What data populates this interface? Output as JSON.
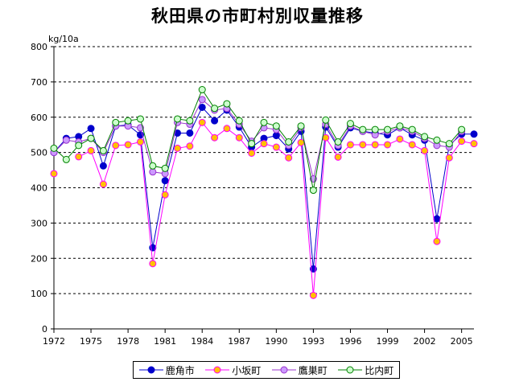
{
  "chart_data": {
    "type": "line",
    "title": "秋田県の市町村別収量推移",
    "ylabel": "kg/10a",
    "xlabel": "",
    "ylim": [
      0,
      800
    ],
    "xlim": [
      1972,
      2006
    ],
    "yticks": [
      "0",
      "100",
      "200",
      "300",
      "400",
      "500",
      "600",
      "700",
      "800"
    ],
    "xticks": [
      "1972",
      "1975",
      "1978",
      "1981",
      "1984",
      "1987",
      "1990",
      "1993",
      "1996",
      "1999",
      "2002",
      "2005"
    ],
    "x": [
      1972,
      1973,
      1974,
      1975,
      1976,
      1977,
      1978,
      1979,
      1980,
      1981,
      1982,
      1983,
      1984,
      1985,
      1986,
      1987,
      1988,
      1989,
      1990,
      1991,
      1992,
      1993,
      1994,
      1995,
      1996,
      1997,
      1998,
      1999,
      2000,
      2001,
      2002,
      2003,
      2004,
      2005,
      2006
    ],
    "grid": true,
    "legend_position": "bottom",
    "series": [
      {
        "name": "鹿角市",
        "color": "#0000cc",
        "fill": "#0000cc",
        "values": [
          500,
          540,
          545,
          568,
          462,
          575,
          578,
          550,
          230,
          420,
          555,
          555,
          628,
          590,
          620,
          572,
          515,
          540,
          548,
          510,
          560,
          170,
          572,
          515,
          570,
          560,
          555,
          550,
          570,
          550,
          535,
          312,
          520,
          552,
          552
        ]
      },
      {
        "name": "小坂町",
        "color": "#ff00ff",
        "fill": "#ffc000",
        "values": [
          440,
          null,
          488,
          505,
          410,
          520,
          522,
          530,
          185,
          380,
          512,
          518,
          585,
          542,
          568,
          542,
          498,
          525,
          515,
          485,
          528,
          95,
          542,
          487,
          522,
          522,
          522,
          522,
          538,
          522,
          505,
          248,
          485,
          532,
          525
        ]
      },
      {
        "name": "鷹巣町",
        "color": "#9933cc",
        "fill": "#cc99ff",
        "values": [
          500,
          535,
          530,
          540,
          500,
          575,
          575,
          570,
          445,
          440,
          585,
          580,
          650,
          620,
          625,
          580,
          532,
          570,
          565,
          520,
          570,
          425,
          580,
          520,
          575,
          560,
          550,
          560,
          570,
          560,
          540,
          520,
          515,
          560,
          null
        ]
      },
      {
        "name": "比内町",
        "color": "#008000",
        "fill": "#ccffcc",
        "values": [
          512,
          480,
          520,
          540,
          505,
          585,
          590,
          595,
          462,
          455,
          595,
          590,
          678,
          625,
          638,
          590,
          525,
          585,
          575,
          530,
          575,
          393,
          592,
          530,
          582,
          565,
          565,
          565,
          575,
          565,
          545,
          535,
          525,
          565,
          null
        ]
      }
    ]
  }
}
